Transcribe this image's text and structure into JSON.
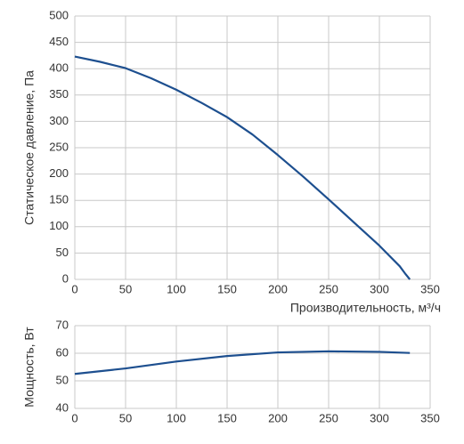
{
  "chart_data": [
    {
      "type": "line",
      "y_label": "Статическое давление, Па",
      "x_label": "Производительность, м³/ч",
      "x": [
        0,
        25,
        50,
        75,
        100,
        125,
        150,
        175,
        200,
        225,
        250,
        275,
        300,
        320,
        325,
        330
      ],
      "values": [
        423,
        413,
        401,
        382,
        360,
        335,
        308,
        275,
        236,
        195,
        152,
        108,
        64,
        25,
        12,
        0
      ],
      "color": "#1d4f8f",
      "xlim": [
        0,
        350
      ],
      "ylim": [
        0,
        500
      ],
      "xticks": [
        0,
        50,
        100,
        150,
        200,
        250,
        300,
        350
      ],
      "yticks": [
        0,
        50,
        100,
        150,
        200,
        250,
        300,
        350,
        400,
        450,
        500
      ],
      "grid": true
    },
    {
      "type": "line",
      "y_label": "Мощность, Вт",
      "x": [
        0,
        50,
        100,
        150,
        200,
        250,
        300,
        330
      ],
      "values": [
        52.5,
        54.5,
        57,
        59,
        60.3,
        60.7,
        60.5,
        60.1
      ],
      "color": "#1d4f8f",
      "xlim": [
        0,
        350
      ],
      "ylim": [
        40,
        70
      ],
      "xticks": [
        0,
        50,
        100,
        150,
        200,
        250,
        300,
        350
      ],
      "yticks": [
        40,
        50,
        60,
        70
      ],
      "grid": true
    }
  ]
}
